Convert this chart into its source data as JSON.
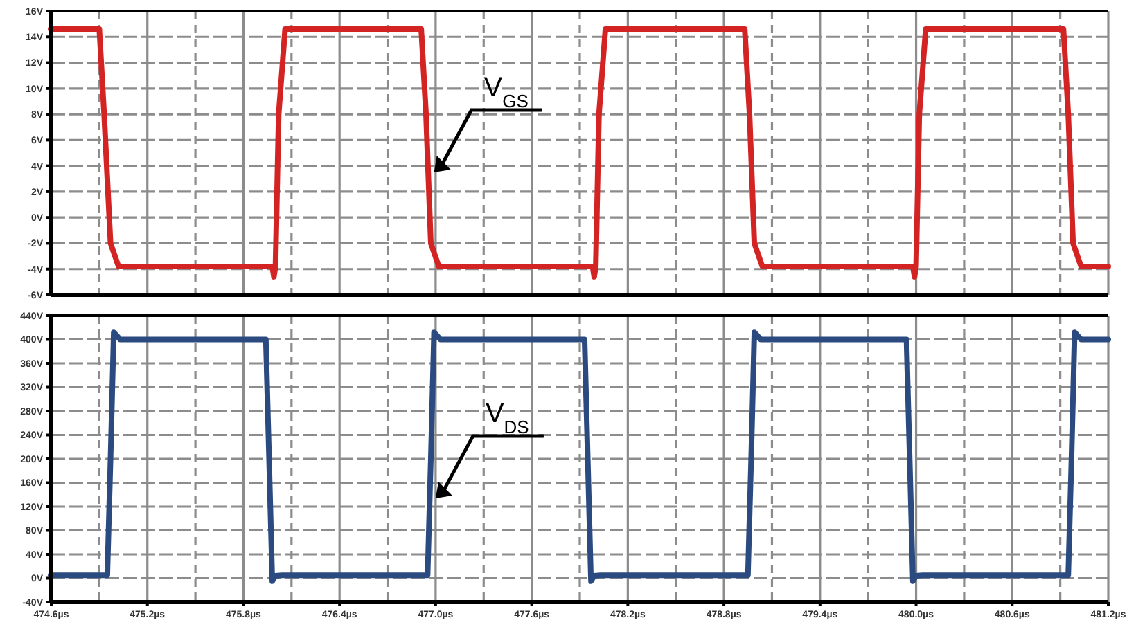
{
  "chart_data": [
    {
      "type": "line",
      "xlim": [
        474.6,
        481.2
      ],
      "ylim": [
        -6,
        16
      ],
      "yticks": [
        {
          "value": -6,
          "label": "-6V"
        },
        {
          "value": -4,
          "label": "-4V"
        },
        {
          "value": -2,
          "label": "-2V"
        },
        {
          "value": 0,
          "label": "0V"
        },
        {
          "value": 2,
          "label": "2V"
        },
        {
          "value": 4,
          "label": "4V"
        },
        {
          "value": 6,
          "label": "6V"
        },
        {
          "value": 8,
          "label": "8V"
        },
        {
          "value": 10,
          "label": "10V"
        },
        {
          "value": 12,
          "label": "12V"
        },
        {
          "value": 14,
          "label": "14V"
        },
        {
          "value": 16,
          "label": "16V"
        }
      ],
      "xticks": [
        {
          "value": 474.6,
          "label": null
        },
        {
          "value": 474.9,
          "label": null
        },
        {
          "value": 475.2,
          "label": null
        },
        {
          "value": 475.5,
          "label": null
        },
        {
          "value": 475.8,
          "label": null
        },
        {
          "value": 476.1,
          "label": null
        },
        {
          "value": 476.4,
          "label": null
        },
        {
          "value": 476.7,
          "label": null
        },
        {
          "value": 477.0,
          "label": null
        },
        {
          "value": 477.3,
          "label": null
        },
        {
          "value": 477.6,
          "label": null
        },
        {
          "value": 477.9,
          "label": null
        },
        {
          "value": 478.2,
          "label": null
        },
        {
          "value": 478.5,
          "label": null
        },
        {
          "value": 478.8,
          "label": null
        },
        {
          "value": 479.1,
          "label": null
        },
        {
          "value": 479.4,
          "label": null
        },
        {
          "value": 479.7,
          "label": null
        },
        {
          "value": 480.0,
          "label": null
        },
        {
          "value": 480.3,
          "label": null
        },
        {
          "value": 480.6,
          "label": null
        },
        {
          "value": 480.9,
          "label": null
        },
        {
          "value": 481.2,
          "label": null
        }
      ],
      "tick_labels": "y",
      "grid": true,
      "line_style": "solid",
      "marker": "none",
      "series": [
        {
          "color": "#d42323",
          "x": [
            474.6,
            474.9,
            474.93,
            474.97,
            475.02,
            475.5,
            475.98,
            475.99,
            476.0,
            476.02,
            476.06,
            476.5,
            476.91,
            476.94,
            476.97,
            477.02,
            477.5,
            477.98,
            477.99,
            478.0,
            478.02,
            478.06,
            478.5,
            478.93,
            478.96,
            478.99,
            479.04,
            479.5,
            479.98,
            479.99,
            480.0,
            480.02,
            480.06,
            480.5,
            480.92,
            480.95,
            480.98,
            481.03,
            481.2
          ],
          "values": [
            14.6,
            14.6,
            8,
            -2,
            -3.8,
            -3.8,
            -3.8,
            -4.6,
            -3.8,
            8,
            14.6,
            14.6,
            14.6,
            8,
            -2,
            -3.8,
            -3.8,
            -3.8,
            -4.6,
            -3.8,
            8,
            14.6,
            14.6,
            14.6,
            8,
            -2,
            -3.8,
            -3.8,
            -3.8,
            -4.6,
            -3.8,
            8,
            14.6,
            14.6,
            14.6,
            8,
            -2,
            -3.8,
            -3.8
          ]
        }
      ],
      "annotations": [
        {
          "text": "V$_{GS}$",
          "x": 476.99,
          "y": 3.5
        }
      ]
    },
    {
      "type": "line",
      "xlim": [
        474.6,
        481.2
      ],
      "ylim": [
        -40,
        440
      ],
      "yticks": [
        {
          "value": -40,
          "label": "-40V"
        },
        {
          "value": 0,
          "label": "0V"
        },
        {
          "value": 40,
          "label": "40V"
        },
        {
          "value": 80,
          "label": "80V"
        },
        {
          "value": 120,
          "label": "120V"
        },
        {
          "value": 160,
          "label": "160V"
        },
        {
          "value": 200,
          "label": "200V"
        },
        {
          "value": 240,
          "label": "240V"
        },
        {
          "value": 280,
          "label": "280V"
        },
        {
          "value": 320,
          "label": "320V"
        },
        {
          "value": 360,
          "label": "360V"
        },
        {
          "value": 400,
          "label": "400V"
        },
        {
          "value": 440,
          "label": "440V"
        }
      ],
      "xticks": [
        {
          "value": 474.6,
          "label": "474.6µs"
        },
        {
          "value": 474.9,
          "label": null
        },
        {
          "value": 475.2,
          "label": "475.2µs"
        },
        {
          "value": 475.5,
          "label": null
        },
        {
          "value": 475.8,
          "label": "475.8µs"
        },
        {
          "value": 476.1,
          "label": null
        },
        {
          "value": 476.4,
          "label": "476.4µs"
        },
        {
          "value": 476.7,
          "label": null
        },
        {
          "value": 477.0,
          "label": "477.0µs"
        },
        {
          "value": 477.3,
          "label": null
        },
        {
          "value": 477.6,
          "label": "477.6µs"
        },
        {
          "value": 477.9,
          "label": null
        },
        {
          "value": 478.2,
          "label": "478.2µs"
        },
        {
          "value": 478.5,
          "label": null
        },
        {
          "value": 478.8,
          "label": "478.8µs"
        },
        {
          "value": 479.1,
          "label": null
        },
        {
          "value": 479.4,
          "label": "479.4µs"
        },
        {
          "value": 479.7,
          "label": null
        },
        {
          "value": 480.0,
          "label": "480.0µs"
        },
        {
          "value": 480.3,
          "label": null
        },
        {
          "value": 480.6,
          "label": "480.6µs"
        },
        {
          "value": 480.9,
          "label": null
        },
        {
          "value": 481.2,
          "label": "481.2µs"
        }
      ],
      "grid": true,
      "line_style": "solid",
      "marker": "none",
      "series": [
        {
          "color": "#2b4a80",
          "x": [
            474.6,
            474.95,
            474.97,
            474.99,
            475.03,
            475.5,
            475.94,
            475.96,
            475.98,
            476.0,
            476.04,
            476.5,
            476.95,
            476.97,
            476.99,
            477.03,
            477.5,
            477.93,
            477.95,
            477.97,
            477.99,
            478.03,
            478.5,
            478.95,
            478.97,
            478.99,
            479.03,
            479.5,
            479.94,
            479.96,
            479.98,
            480.0,
            480.04,
            480.5,
            480.95,
            480.97,
            480.99,
            481.03,
            481.2
          ],
          "values": [
            5,
            5,
            200,
            412,
            400,
            400,
            400,
            200,
            -5,
            4,
            5,
            5,
            5,
            200,
            412,
            400,
            400,
            400,
            200,
            -5,
            4,
            5,
            5,
            5,
            200,
            412,
            400,
            400,
            400,
            200,
            -5,
            4,
            5,
            5,
            5,
            200,
            412,
            400,
            400
          ]
        }
      ],
      "annotations": [
        {
          "text": "V$_{DS}$",
          "x": 477.0,
          "y": 134
        }
      ]
    }
  ]
}
